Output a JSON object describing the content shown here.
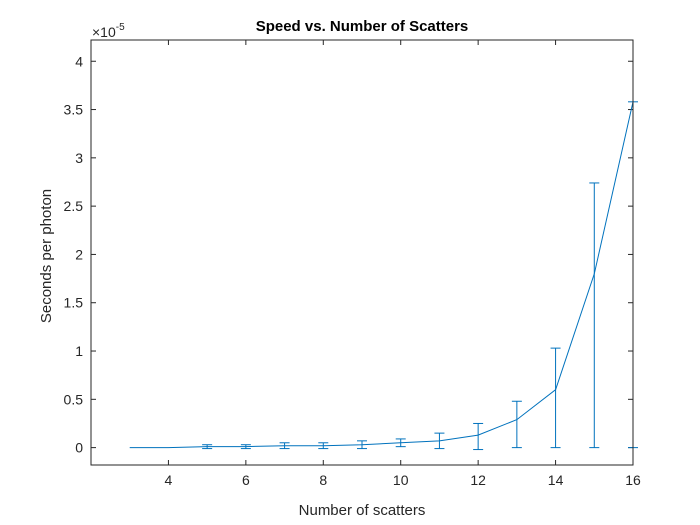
{
  "chart_data": {
    "type": "line",
    "title": "Speed vs. Number of Scatters",
    "xlabel": "Number of scatters",
    "ylabel": "Seconds per photon",
    "y_exponent_label": "×10",
    "y_exponent": "-5",
    "xlim": [
      2,
      16
    ],
    "ylim": [
      -0.18,
      4.22
    ],
    "xticks": [
      4,
      6,
      8,
      10,
      12,
      14,
      16
    ],
    "xtick_labels": [
      "4",
      "6",
      "8",
      "10",
      "12",
      "14",
      "16"
    ],
    "yticks": [
      0,
      0.5,
      1,
      1.5,
      2,
      2.5,
      3,
      3.5,
      4
    ],
    "ytick_labels": [
      "0",
      "0.5",
      "1",
      "1.5",
      "2",
      "2.5",
      "3",
      "3.5",
      "4"
    ],
    "grid": false,
    "box": true,
    "series": [
      {
        "color": "#0072BD",
        "x": [
          3,
          4,
          5,
          6,
          7,
          8,
          9,
          10,
          11,
          12,
          13,
          14,
          15,
          16
        ],
        "y": [
          0.0,
          0.0,
          0.01,
          0.01,
          0.02,
          0.02,
          0.03,
          0.05,
          0.07,
          0.13,
          0.29,
          0.6,
          1.8,
          3.58
        ],
        "err_low": [
          0.0,
          0.0,
          0.02,
          0.02,
          0.03,
          0.03,
          0.04,
          0.04,
          0.08,
          0.15,
          0.29,
          0.6,
          1.8,
          3.58
        ],
        "err_high": [
          0.0,
          0.0,
          0.02,
          0.02,
          0.03,
          0.03,
          0.04,
          0.04,
          0.08,
          0.12,
          0.19,
          0.43,
          0.94,
          0.0
        ]
      }
    ]
  }
}
